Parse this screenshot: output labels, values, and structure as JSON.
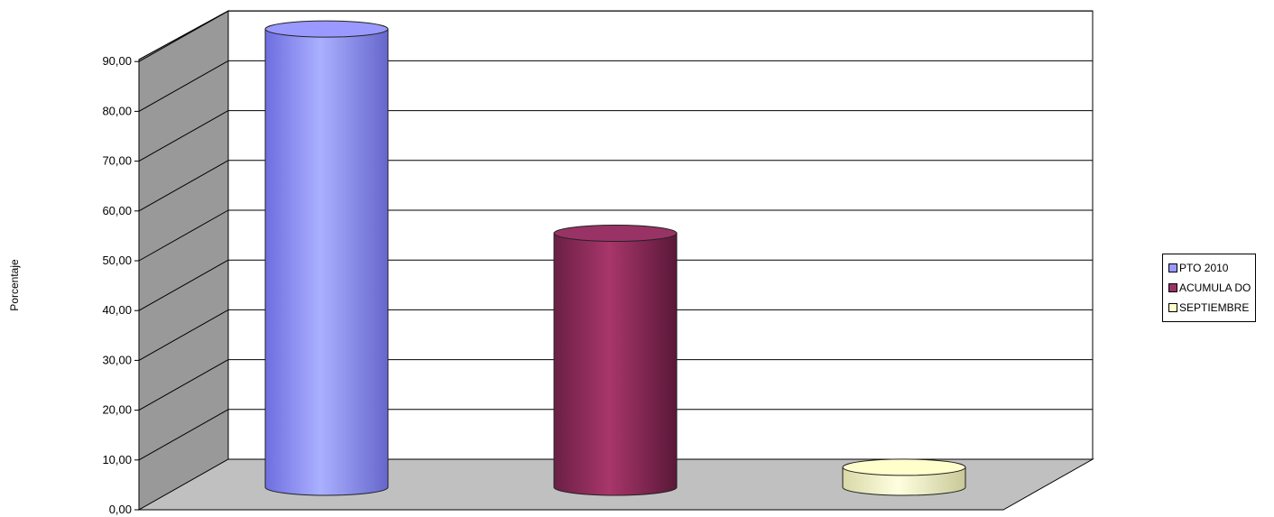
{
  "chart_data": {
    "type": "bar",
    "bar_shape": "3d-cylinder",
    "title": "",
    "xlabel": "",
    "ylabel": "Porcentaje",
    "ylim": [
      0,
      90
    ],
    "yticks": [
      "0,00",
      "10,00",
      "20,00",
      "30,00",
      "40,00",
      "50,00",
      "60,00",
      "70,00",
      "80,00",
      "90,00"
    ],
    "grid": true,
    "legend_position": "right",
    "series": [
      {
        "name": "PTO  2010",
        "value": 92,
        "color": "#9999ff"
      },
      {
        "name": "ACUMULA DO",
        "value": 51,
        "color": "#993366"
      },
      {
        "name": "SEPTIEMBRE",
        "value": 4,
        "color": "#ffffcc"
      }
    ]
  }
}
